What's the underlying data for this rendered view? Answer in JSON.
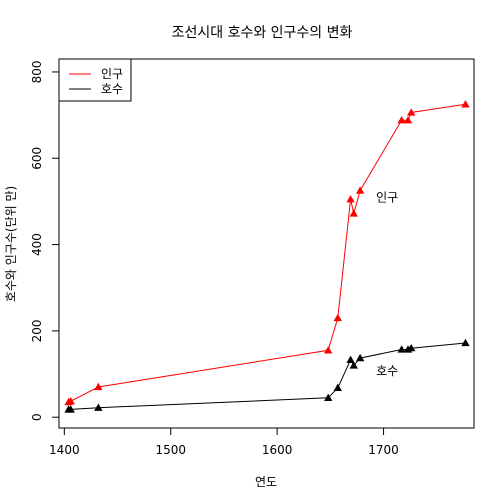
{
  "chart_data": {
    "type": "line",
    "title": "조선시대 호수와 인구수의 변화",
    "xlabel": "연도",
    "ylabel": "호수와 인구수(단위 만)",
    "xlim": [
      1395,
      1785
    ],
    "ylim": [
      -25,
      830
    ],
    "xticks": [
      1400,
      1500,
      1600,
      1700
    ],
    "yticks": [
      0,
      200,
      400,
      600,
      800
    ],
    "legend_position": "top-left",
    "series": [
      {
        "name": "인구",
        "color": "#ff0000",
        "annotation": "인구",
        "annotation_at": [
          1693,
          500
        ],
        "x": [
          1404,
          1406,
          1432,
          1648,
          1657,
          1669,
          1672,
          1678,
          1717,
          1723,
          1726,
          1777
        ],
        "y": [
          35,
          37,
          70,
          155,
          230,
          505,
          472,
          525,
          688,
          688,
          706,
          725
        ]
      },
      {
        "name": "호수",
        "color": "#000000",
        "annotation": "호수",
        "annotation_at": [
          1693,
          98
        ],
        "x": [
          1404,
          1406,
          1432,
          1648,
          1657,
          1669,
          1672,
          1678,
          1717,
          1723,
          1726,
          1777
        ],
        "y": [
          18,
          18,
          22,
          45,
          68,
          133,
          120,
          137,
          157,
          157,
          160,
          172
        ]
      }
    ]
  }
}
